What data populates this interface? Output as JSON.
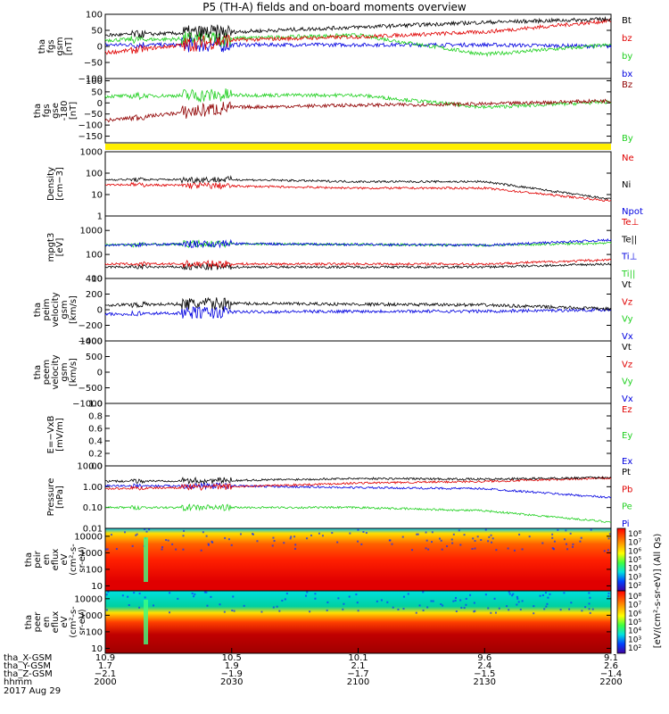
{
  "title": "P5 (TH-A) fields and on-board moments overview",
  "colors": {
    "black": "#000000",
    "red": "#e00000",
    "green": "#20d020",
    "blue": "#0000e0",
    "darkred": "#900000",
    "yellow": "#ffee00"
  },
  "panels": [
    {
      "ylabel": [
        "tha",
        "fgs",
        "gsm",
        "[nT]"
      ],
      "ticks": [
        "100",
        "50",
        "0",
        "−50",
        "−100"
      ],
      "tickvals": [
        100,
        50,
        0,
        -50,
        -100
      ],
      "ylim": [
        -100,
        100
      ],
      "scale": "linear",
      "legend": [
        {
          "text": "Bt",
          "color": "black"
        },
        {
          "text": "bz",
          "color": "red"
        },
        {
          "text": "by",
          "color": "green"
        },
        {
          "text": "bx",
          "color": "blue"
        }
      ]
    },
    {
      "ylabel": [
        "tha",
        "fgs",
        "gse",
        "-180",
        "[nT]"
      ],
      "ticks": [
        "100",
        "50",
        "0",
        "−50",
        "−100",
        "−150"
      ],
      "tickvals": [
        100,
        50,
        0,
        -50,
        -100,
        -150
      ],
      "ylim": [
        -180,
        110
      ],
      "scale": "linear",
      "legend": [
        {
          "text": "Bz",
          "color": "darkred"
        },
        {
          "text": "By",
          "color": "green"
        }
      ]
    },
    {
      "ylabel": [
        "Density",
        "[cm−3]"
      ],
      "ticks": [
        "1000",
        "100",
        "10",
        "1"
      ],
      "tickvals": [
        1000,
        100,
        10,
        1
      ],
      "ylim": [
        1,
        1000
      ],
      "scale": "log",
      "legend": [
        {
          "text": "Ne",
          "color": "red"
        },
        {
          "text": "Ni",
          "color": "black"
        },
        {
          "text": "Npot",
          "color": "blue"
        }
      ]
    },
    {
      "ylabel": [
        "mpgt3",
        "[eV]"
      ],
      "ticks": [
        "1000",
        "100",
        "10"
      ],
      "tickvals": [
        1000,
        100,
        10
      ],
      "ylim": [
        10,
        4000
      ],
      "scale": "log",
      "legend": [
        {
          "text": "Te⊥",
          "color": "red"
        },
        {
          "text": "Te||",
          "color": "black"
        },
        {
          "text": "Ti⊥",
          "color": "blue"
        },
        {
          "text": "Ti||",
          "color": "green"
        }
      ]
    },
    {
      "ylabel": [
        "tha",
        "peim",
        "velocity",
        "gsm",
        "[km/s]"
      ],
      "ticks": [
        "400",
        "200",
        "0",
        "−200",
        "−400"
      ],
      "tickvals": [
        400,
        200,
        0,
        -200,
        -400
      ],
      "ylim": [
        -400,
        400
      ],
      "scale": "linear",
      "legend": [
        {
          "text": "Vt",
          "color": "black"
        },
        {
          "text": "Vz",
          "color": "red"
        },
        {
          "text": "Vy",
          "color": "green"
        },
        {
          "text": "Vx",
          "color": "blue"
        }
      ]
    },
    {
      "ylabel": [
        "tha",
        "peem",
        "velocity",
        "gsm",
        "[km/s]"
      ],
      "ticks": [
        "1000",
        "500",
        "0",
        "−500",
        "−1000"
      ],
      "tickvals": [
        1000,
        500,
        0,
        -500,
        -1000
      ],
      "ylim": [
        -1000,
        1000
      ],
      "scale": "linear",
      "legend": [
        {
          "text": "Vt",
          "color": "black"
        },
        {
          "text": "Vz",
          "color": "red"
        },
        {
          "text": "Vy",
          "color": "green"
        },
        {
          "text": "Vx",
          "color": "blue"
        }
      ]
    },
    {
      "ylabel": [
        "E=−VxB",
        "[mV/m]"
      ],
      "ticks": [
        "1.0",
        "0.8",
        "0.6",
        "0.4",
        "0.2",
        "0.0"
      ],
      "tickvals": [
        1,
        0.8,
        0.6,
        0.4,
        0.2,
        0
      ],
      "ylim": [
        0,
        1
      ],
      "scale": "linear",
      "legend": [
        {
          "text": "Ez",
          "color": "red"
        },
        {
          "text": "Ey",
          "color": "green"
        },
        {
          "text": "Ex",
          "color": "blue"
        }
      ]
    },
    {
      "ylabel": [
        "Pressure",
        "[nPa]"
      ],
      "ticks": [
        "10.00",
        "1.00",
        "0.10",
        "0.01"
      ],
      "tickvals": [
        10,
        1,
        0.1,
        0.01
      ],
      "ylim": [
        0.01,
        10
      ],
      "scale": "log",
      "legend": [
        {
          "text": "Pt",
          "color": "black"
        },
        {
          "text": "Pb",
          "color": "red"
        },
        {
          "text": "Pe",
          "color": "green"
        },
        {
          "text": "Pi",
          "color": "blue"
        }
      ]
    },
    {
      "ylabel": [
        "tha",
        "peir",
        "en",
        "eflux",
        "eV",
        "(cm²-s-",
        "sr-eV)"
      ],
      "ticks": [
        "10000",
        "1000",
        "100",
        "10"
      ],
      "tickvals": [
        10000,
        1000,
        100,
        10
      ],
      "ylim": [
        5,
        30000
      ],
      "scale": "log",
      "legend": []
    },
    {
      "ylabel": [
        "tha",
        "peer",
        "en",
        "eflux",
        "eV",
        "(cm²-s-",
        "sr-eV)"
      ],
      "ticks": [
        "10000",
        "1000",
        "100",
        "10"
      ],
      "tickvals": [
        10000,
        1000,
        100,
        10
      ],
      "ylim": [
        5,
        30000
      ],
      "scale": "log",
      "legend": []
    }
  ],
  "colorbar": {
    "label": "[eV/(cm²-s-sr-eV)] (All Qs)",
    "ticks": [
      "10⁸",
      "10⁷",
      "10⁶",
      "10⁵",
      "10⁴",
      "10³",
      "10²"
    ]
  },
  "xaxis": {
    "row_labels": [
      "tha_X-GSM",
      "tha_Y-GSM",
      "tha_Z-GSM",
      "hhmm",
      "2017 Aug 29"
    ],
    "columns": [
      [
        "10.9",
        "1.7",
        "−2.1",
        "2000"
      ],
      [
        "10.5",
        "1.9",
        "−1.9",
        "2030"
      ],
      [
        "10.1",
        "2.1",
        "−1.7",
        "2100"
      ],
      [
        "9.6",
        "2.4",
        "−1.5",
        "2130"
      ],
      [
        "9.1",
        "2.6",
        "−1.4",
        "2200"
      ]
    ]
  },
  "chart_data": {
    "type": "line",
    "title": "P5 (TH-A) fields and on-board moments overview",
    "x": [
      "2000",
      "2030",
      "2100",
      "2130",
      "2200"
    ],
    "xlabel": "hhmm",
    "series": [
      {
        "panel": 0,
        "name": "Bt",
        "values": [
          35,
          45,
          60,
          75,
          85
        ]
      },
      {
        "panel": 0,
        "name": "bz",
        "values": [
          -20,
          20,
          30,
          45,
          80
        ]
      },
      {
        "panel": 0,
        "name": "by",
        "values": [
          20,
          25,
          35,
          -25,
          5
        ]
      },
      {
        "panel": 0,
        "name": "bx",
        "values": [
          5,
          5,
          5,
          5,
          0
        ]
      },
      {
        "panel": 1,
        "name": "Bz",
        "values": [
          -80,
          -20,
          -10,
          -5,
          10
        ]
      },
      {
        "panel": 1,
        "name": "By",
        "values": [
          30,
          35,
          35,
          -20,
          5
        ]
      },
      {
        "panel": 2,
        "name": "Ni",
        "values": [
          50,
          50,
          40,
          40,
          6
        ]
      },
      {
        "panel": 2,
        "name": "Ne",
        "values": [
          30,
          25,
          20,
          20,
          5
        ]
      },
      {
        "panel": 3,
        "name": "Ti⊥",
        "values": [
          250,
          280,
          260,
          240,
          400
        ]
      },
      {
        "panel": 3,
        "name": "Ti||",
        "values": [
          250,
          280,
          260,
          240,
          300
        ]
      },
      {
        "panel": 3,
        "name": "Te⊥",
        "values": [
          40,
          40,
          40,
          40,
          60
        ]
      },
      {
        "panel": 3,
        "name": "Te||",
        "values": [
          30,
          30,
          30,
          30,
          40
        ]
      },
      {
        "panel": 4,
        "name": "Vt",
        "values": [
          60,
          80,
          70,
          60,
          10
        ]
      },
      {
        "panel": 4,
        "name": "Vx",
        "values": [
          -60,
          -30,
          -20,
          -20,
          0
        ]
      },
      {
        "panel": 7,
        "name": "Pt",
        "values": [
          1.8,
          2.0,
          2.5,
          2.3,
          2.8
        ]
      },
      {
        "panel": 7,
        "name": "Pb",
        "values": [
          0.8,
          1.0,
          1.5,
          1.8,
          2.6
        ]
      },
      {
        "panel": 7,
        "name": "Pe",
        "values": [
          0.1,
          0.1,
          0.1,
          0.07,
          0.02
        ]
      },
      {
        "panel": 7,
        "name": "Pi",
        "values": [
          1.1,
          1.1,
          0.9,
          0.8,
          0.3
        ]
      }
    ]
  }
}
